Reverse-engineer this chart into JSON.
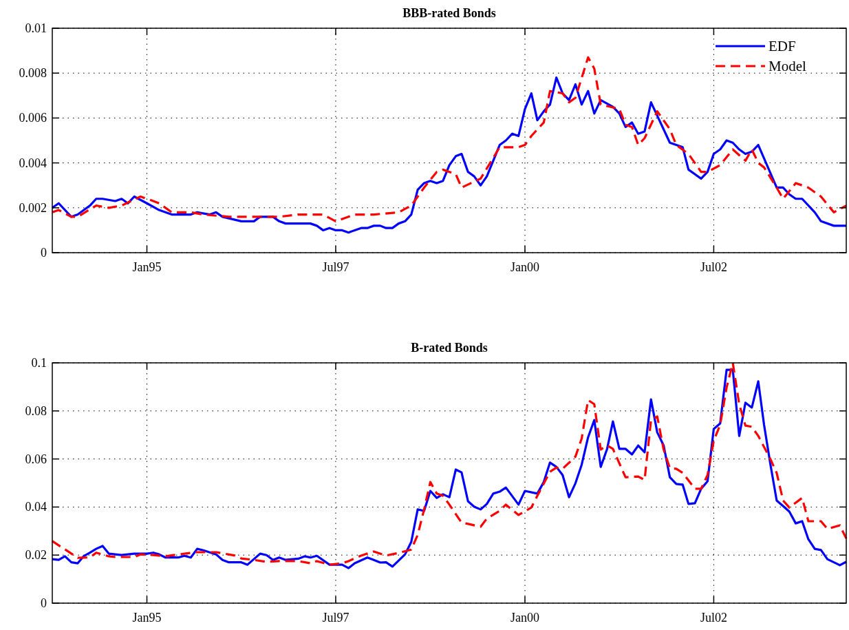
{
  "chart_data": [
    {
      "type": "line",
      "title": "BBB-rated Bonds",
      "xlim": [
        "1993-10",
        "2004-04"
      ],
      "xticks": [
        {
          "value": "1995-01",
          "label": "Jan95"
        },
        {
          "value": "1997-07",
          "label": "Jul97"
        },
        {
          "value": "2000-01",
          "label": "Jan00"
        },
        {
          "value": "2002-07",
          "label": "Jul02"
        }
      ],
      "ylim": [
        0,
        0.01
      ],
      "yticks": [
        0,
        0.002,
        0.004,
        0.006,
        0.008,
        0.01
      ],
      "grid": true,
      "legend": "top right",
      "series": [
        {
          "name": "EDF",
          "color": "#0000ff",
          "line_style": "solid",
          "x": [
            "1993-10",
            "1993-11",
            "1994-01",
            "1994-02",
            "1994-04",
            "1994-05",
            "1994-06",
            "1994-08",
            "1994-09",
            "1994-10",
            "1994-11",
            "1995-01",
            "1995-03",
            "1995-05",
            "1995-08",
            "1995-09",
            "1995-11",
            "1995-12",
            "1996-01",
            "1996-04",
            "1996-06",
            "1996-07",
            "1996-09",
            "1996-10",
            "1996-11",
            "1997-03",
            "1997-04",
            "1997-05",
            "1997-06",
            "1997-07",
            "1997-08",
            "1997-09",
            "1997-11",
            "1997-12",
            "1998-01",
            "1998-02",
            "1998-03",
            "1998-04",
            "1998-05",
            "1998-06",
            "1998-07",
            "1998-08",
            "1998-09",
            "1998-10",
            "1998-11",
            "1998-12",
            "1999-01",
            "1999-02",
            "1999-03",
            "1999-04",
            "1999-05",
            "1999-06",
            "1999-07",
            "1999-09",
            "1999-10",
            "1999-11",
            "1999-12",
            "2000-01",
            "2000-02",
            "2000-03",
            "2000-04",
            "2000-05",
            "2000-06",
            "2000-07",
            "2000-08",
            "2000-09",
            "2000-10",
            "2000-11",
            "2000-12",
            "2001-01",
            "2001-03",
            "2001-04",
            "2001-05",
            "2001-06",
            "2001-07",
            "2001-08",
            "2001-09",
            "2001-12",
            "2002-02",
            "2002-03",
            "2002-05",
            "2002-06",
            "2002-07",
            "2002-08",
            "2002-09",
            "2002-10",
            "2002-11",
            "2002-12",
            "2003-01",
            "2003-02",
            "2003-05",
            "2003-06",
            "2003-07",
            "2003-08",
            "2003-09",
            "2003-11",
            "2003-12",
            "2004-02",
            "2004-04"
          ],
          "values": [
            0.002,
            0.0022,
            0.0016,
            0.0017,
            0.0021,
            0.0024,
            0.0024,
            0.0023,
            0.0024,
            0.0022,
            0.0025,
            0.0022,
            0.0019,
            0.0017,
            0.0017,
            0.0018,
            0.0017,
            0.0018,
            0.0016,
            0.0014,
            0.0014,
            0.0016,
            0.0016,
            0.0014,
            0.0013,
            0.0013,
            0.0012,
            0.001,
            0.0011,
            0.001,
            0.001,
            0.0009,
            0.0011,
            0.0011,
            0.0012,
            0.0012,
            0.0011,
            0.0011,
            0.0013,
            0.0014,
            0.0017,
            0.0028,
            0.0031,
            0.0032,
            0.0031,
            0.0032,
            0.0039,
            0.0043,
            0.0044,
            0.0036,
            0.0034,
            0.003,
            0.0034,
            0.0048,
            0.005,
            0.0053,
            0.0052,
            0.0064,
            0.0071,
            0.0059,
            0.0063,
            0.0066,
            0.0078,
            0.0071,
            0.0068,
            0.0075,
            0.0066,
            0.0072,
            0.0062,
            0.0068,
            0.0065,
            0.0062,
            0.0056,
            0.0058,
            0.0053,
            0.0054,
            0.0067,
            0.0049,
            0.0047,
            0.0037,
            0.0033,
            0.0036,
            0.0044,
            0.0046,
            0.005,
            0.0049,
            0.0046,
            0.0044,
            0.0045,
            0.0048,
            0.0029,
            0.0029,
            0.0026,
            0.0024,
            0.0024,
            0.0018,
            0.0014,
            0.0012,
            0.0012
          ]
        },
        {
          "name": "Model",
          "color": "#ff0000",
          "line_style": "dashed",
          "x": [
            "1993-10",
            "1993-11",
            "1994-01",
            "1994-02",
            "1994-05",
            "1994-07",
            "1994-09",
            "1994-12",
            "1995-02",
            "1995-03",
            "1995-05",
            "1995-08",
            "1995-10",
            "1996-02",
            "1996-06",
            "1996-10",
            "1997-01",
            "1997-05",
            "1997-07",
            "1997-10",
            "1998-01",
            "1998-05",
            "1998-07",
            "1998-09",
            "1998-11",
            "1998-12",
            "1999-02",
            "1999-03",
            "1999-06",
            "1999-09",
            "1999-12",
            "2000-01",
            "2000-02",
            "2000-04",
            "2000-05",
            "2000-07",
            "2000-08",
            "2000-09",
            "2000-11",
            "2000-12",
            "2001-01",
            "2001-04",
            "2001-05",
            "2001-06",
            "2001-07",
            "2001-08",
            "2001-10",
            "2001-12",
            "2002-01",
            "2002-03",
            "2002-05",
            "2002-06",
            "2002-08",
            "2002-10",
            "2002-12",
            "2003-01",
            "2003-02",
            "2003-03",
            "2003-05",
            "2003-06",
            "2003-08",
            "2003-10",
            "2003-12",
            "2004-02",
            "2004-04"
          ],
          "values": [
            0.0018,
            0.0019,
            0.0016,
            0.0016,
            0.0021,
            0.002,
            0.0021,
            0.0025,
            0.0023,
            0.0022,
            0.0018,
            0.0018,
            0.0017,
            0.0016,
            0.0016,
            0.0016,
            0.0017,
            0.0017,
            0.0014,
            0.0017,
            0.0017,
            0.0018,
            0.0021,
            0.0029,
            0.0036,
            0.0037,
            0.0035,
            0.0029,
            0.0033,
            0.0047,
            0.0047,
            0.0048,
            0.0052,
            0.0058,
            0.0072,
            0.0071,
            0.0067,
            0.0069,
            0.0087,
            0.0082,
            0.0066,
            0.0064,
            0.0057,
            0.0056,
            0.0048,
            0.0051,
            0.0063,
            0.0055,
            0.0048,
            0.0044,
            0.0036,
            0.0036,
            0.0039,
            0.0046,
            0.0041,
            0.0046,
            0.004,
            0.0038,
            0.0029,
            0.0024,
            0.0031,
            0.0029,
            0.0025,
            0.0018,
            0.0021
          ]
        }
      ]
    },
    {
      "type": "line",
      "title": "B-rated Bonds",
      "xlim": [
        "1993-10",
        "2004-04"
      ],
      "xticks": [
        {
          "value": "1995-01",
          "label": "Jan95"
        },
        {
          "value": "1997-07",
          "label": "Jul97"
        },
        {
          "value": "2000-01",
          "label": "Jan00"
        },
        {
          "value": "2002-07",
          "label": "Jul02"
        }
      ],
      "ylim": [
        0,
        0.1
      ],
      "yticks": [
        0,
        0.02,
        0.04,
        0.06,
        0.08,
        0.1
      ],
      "grid": true,
      "series": [
        {
          "color": "#0000ff",
          "line_style": "solid",
          "x": [
            "1993-10",
            "1993-11",
            "1993-12",
            "1994-01",
            "1994-02",
            "1994-03",
            "1994-04",
            "1994-05",
            "1994-06",
            "1994-07",
            "1994-09",
            "1994-11",
            "1995-01",
            "1995-02",
            "1995-03",
            "1995-04",
            "1995-06",
            "1995-07",
            "1995-08",
            "1995-09",
            "1995-10",
            "1995-12",
            "1996-01",
            "1996-02",
            "1996-04",
            "1996-05",
            "1996-07",
            "1996-08",
            "1996-09",
            "1996-10",
            "1996-11",
            "1997-01",
            "1997-02",
            "1997-03",
            "1997-04",
            "1997-06",
            "1997-08",
            "1997-09",
            "1997-10",
            "1997-12",
            "1998-01",
            "1998-02",
            "1998-03",
            "1998-04",
            "1998-06",
            "1998-07",
            "1998-08",
            "1998-09",
            "1998-10",
            "1998-11",
            "1998-12",
            "1999-01",
            "1999-02",
            "1999-03",
            "1999-04",
            "1999-05",
            "1999-06",
            "1999-07",
            "1999-08",
            "1999-09",
            "1999-10",
            "1999-12",
            "2000-01",
            "2000-03",
            "2000-04",
            "2000-05",
            "2000-06",
            "2000-07",
            "2000-08",
            "2000-09",
            "2000-10",
            "2000-11",
            "2000-12",
            "2001-01",
            "2001-02",
            "2001-03",
            "2001-04",
            "2001-05",
            "2001-06",
            "2001-07",
            "2001-08",
            "2001-09",
            "2001-10",
            "2001-11",
            "2001-12",
            "2002-01",
            "2002-02",
            "2002-03",
            "2002-04",
            "2002-05",
            "2002-06",
            "2002-07",
            "2002-08",
            "2002-09",
            "2002-10",
            "2002-11",
            "2002-12",
            "2003-01",
            "2003-02",
            "2003-03",
            "2003-04",
            "2003-05",
            "2003-06",
            "2003-07",
            "2003-08",
            "2003-09",
            "2003-10",
            "2003-11",
            "2003-12",
            "2004-01",
            "2004-03",
            "2004-04"
          ],
          "values": [
            0.0183,
            0.018,
            0.0195,
            0.017,
            0.0166,
            0.0195,
            0.021,
            0.0226,
            0.0238,
            0.0206,
            0.02,
            0.0206,
            0.0206,
            0.021,
            0.0203,
            0.019,
            0.019,
            0.0197,
            0.019,
            0.0226,
            0.022,
            0.0203,
            0.018,
            0.017,
            0.017,
            0.016,
            0.0206,
            0.02,
            0.018,
            0.019,
            0.018,
            0.0185,
            0.0195,
            0.019,
            0.0197,
            0.016,
            0.016,
            0.0146,
            0.0166,
            0.019,
            0.018,
            0.0169,
            0.017,
            0.0152,
            0.0203,
            0.0255,
            0.039,
            0.0384,
            0.0467,
            0.0438,
            0.0453,
            0.0441,
            0.0556,
            0.0544,
            0.0424,
            0.0401,
            0.039,
            0.0413,
            0.0456,
            0.0464,
            0.0481,
            0.041,
            0.0467,
            0.0456,
            0.0504,
            0.0585,
            0.0567,
            0.0533,
            0.0441,
            0.0499,
            0.0576,
            0.069,
            0.0762,
            0.0567,
            0.0642,
            0.0756,
            0.0642,
            0.0642,
            0.0619,
            0.0656,
            0.0628,
            0.0848,
            0.0711,
            0.0656,
            0.0524,
            0.0496,
            0.0493,
            0.0413,
            0.0416,
            0.0476,
            0.0507,
            0.0725,
            0.0748,
            0.0971,
            0.0971,
            0.0696,
            0.0834,
            0.0814,
            0.0923,
            0.0742,
            0.0576,
            0.0427,
            0.0404,
            0.0381,
            0.0332,
            0.0341,
            0.0266,
            0.0226,
            0.0221,
            0.0183,
            0.0158,
            0.0172
          ]
        },
        {
          "color": "#ff0000",
          "line_style": "dashed",
          "x": [
            "1993-10",
            "1994-02",
            "1994-04",
            "1994-05",
            "1994-07",
            "1994-08",
            "1994-11",
            "1994-12",
            "1995-02",
            "1995-04",
            "1995-06",
            "1995-09",
            "1995-12",
            "1996-03",
            "1996-04",
            "1996-06",
            "1996-08",
            "1996-10",
            "1997-01",
            "1997-03",
            "1997-04",
            "1997-06",
            "1997-08",
            "1997-09",
            "1997-11",
            "1998-01",
            "1998-03",
            "1998-05",
            "1998-07",
            "1998-08",
            "1998-09",
            "1998-10",
            "1998-11",
            "1998-12",
            "1999-01",
            "1999-03",
            "1999-04",
            "1999-06",
            "1999-07",
            "1999-09",
            "1999-10",
            "1999-12",
            "2000-02",
            "2000-03",
            "2000-05",
            "2000-06",
            "2000-07",
            "2000-09",
            "2000-10",
            "2000-11",
            "2000-12",
            "2001-01",
            "2001-02",
            "2001-03",
            "2001-05",
            "2001-07",
            "2001-08",
            "2001-09",
            "2001-10",
            "2001-11",
            "2001-12",
            "2002-01",
            "2002-02",
            "2002-04",
            "2002-05",
            "2002-06",
            "2002-07",
            "2002-08",
            "2002-09",
            "2002-10",
            "2002-11",
            "2002-12",
            "2003-01",
            "2003-02",
            "2003-04",
            "2003-05",
            "2003-06",
            "2003-07",
            "2003-09",
            "2003-10",
            "2003-12",
            "2004-01",
            "2004-03",
            "2004-04"
          ],
          "values": [
            0.0258,
            0.0189,
            0.019,
            0.021,
            0.0195,
            0.0192,
            0.0192,
            0.0203,
            0.02,
            0.0195,
            0.0203,
            0.0212,
            0.0212,
            0.0198,
            0.0186,
            0.018,
            0.0172,
            0.0175,
            0.0175,
            0.0166,
            0.0175,
            0.016,
            0.0166,
            0.0175,
            0.0198,
            0.0215,
            0.0198,
            0.0209,
            0.0223,
            0.0284,
            0.039,
            0.0504,
            0.0456,
            0.0447,
            0.041,
            0.0335,
            0.033,
            0.0318,
            0.0352,
            0.0384,
            0.041,
            0.0367,
            0.0398,
            0.0447,
            0.0547,
            0.0564,
            0.0559,
            0.061,
            0.0685,
            0.0845,
            0.0828,
            0.0639,
            0.0656,
            0.0642,
            0.0524,
            0.0527,
            0.0513,
            0.0762,
            0.0777,
            0.0639,
            0.0562,
            0.0559,
            0.0542,
            0.0476,
            0.0476,
            0.0533,
            0.0676,
            0.0742,
            0.0897,
            0.1,
            0.0828,
            0.0739,
            0.0734,
            0.0696,
            0.0599,
            0.0542,
            0.0427,
            0.0398,
            0.0438,
            0.0341,
            0.0341,
            0.0309,
            0.0324,
            0.0269
          ]
        }
      ]
    }
  ]
}
